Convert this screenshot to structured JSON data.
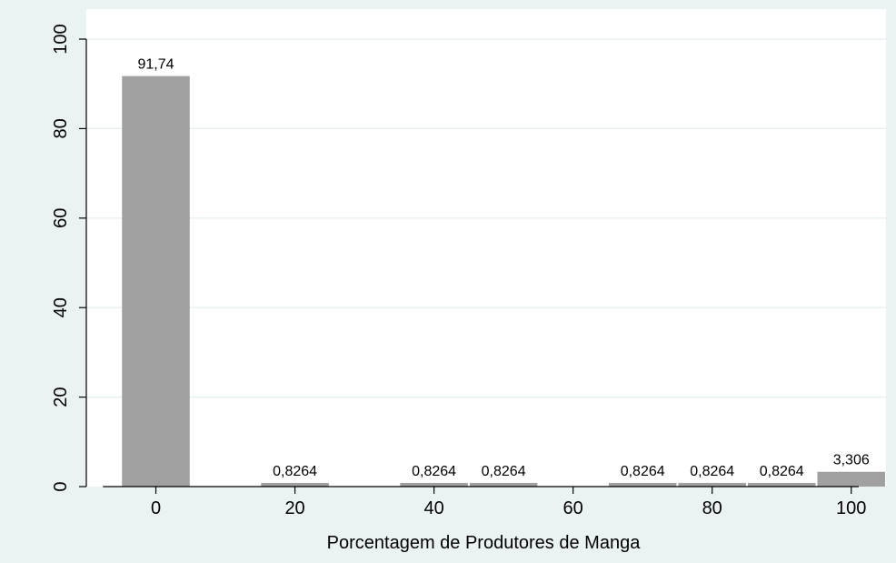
{
  "chart_data": {
    "type": "bar",
    "title": "",
    "xlabel": "Porcentagem de Produtores de Manga",
    "ylabel": "",
    "xlim": [
      -10,
      105
    ],
    "ylim": [
      0,
      100
    ],
    "xticks": [
      0,
      20,
      40,
      60,
      80,
      100
    ],
    "yticks": [
      0,
      20,
      40,
      60,
      80,
      100
    ],
    "bar_width": 10,
    "bars": [
      {
        "x": 0,
        "value": 91.74,
        "label": "91,74"
      },
      {
        "x": 20,
        "value": 0.8264,
        "label": "0,8264"
      },
      {
        "x": 40,
        "value": 0.8264,
        "label": "0,8264"
      },
      {
        "x": 50,
        "value": 0.8264,
        "label": "0,8264"
      },
      {
        "x": 70,
        "value": 0.8264,
        "label": "0,8264"
      },
      {
        "x": 80,
        "value": 0.8264,
        "label": "0,8264"
      },
      {
        "x": 90,
        "value": 0.8264,
        "label": "0,8264"
      },
      {
        "x": 100,
        "value": 3.306,
        "label": "3,306"
      }
    ],
    "grid": true,
    "colors": {
      "bar": "#a0a0a0",
      "plot_bg": "#ffffff",
      "outer_bg": "#eaf2f3",
      "grid": "#e3eeef",
      "axis": "#000000"
    }
  }
}
